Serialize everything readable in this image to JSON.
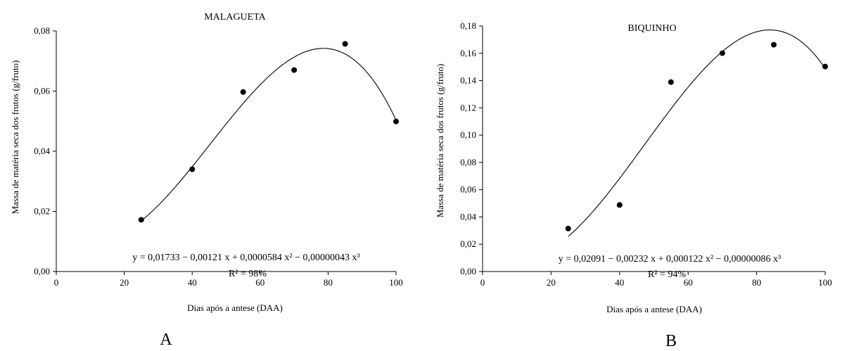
{
  "chart_data": [
    {
      "type": "scatter",
      "title": "MALAGUETA",
      "panel_label": "A",
      "xlabel": "Dias após a antese (DAA)",
      "ylabel": "Massa de matéria seca dos frutos (g/fruto)",
      "xlim": [
        0,
        100
      ],
      "ylim": [
        0,
        0.08
      ],
      "x_ticks": [
        "0",
        "20",
        "40",
        "60",
        "80",
        "100"
      ],
      "y_ticks": [
        "0,00",
        "0,02",
        "0,04",
        "0,06",
        "0,08"
      ],
      "x": [
        25,
        40,
        55,
        70,
        85,
        100
      ],
      "y": [
        0.0172,
        0.034,
        0.0597,
        0.067,
        0.0757,
        0.0499
      ],
      "fit": {
        "type": "cubic",
        "coefficients": [
          0.01733,
          -0.00121,
          5.84e-05,
          -4.3e-07
        ],
        "x_range": [
          25,
          100
        ]
      },
      "equation": "y = 0,01733 − 0,00121 x + 0,0000584 x² − 0,00000043 x³",
      "r2": "R² = 98%",
      "grid": false,
      "legend": "none"
    },
    {
      "type": "scatter",
      "title": "BIQUINHO",
      "panel_label": "B",
      "xlabel": "Dias após a antese (DAA)",
      "ylabel": "Massa de matéria seca dos frutos (g/fruto)",
      "xlim": [
        0,
        100
      ],
      "ylim": [
        0,
        0.18
      ],
      "x_ticks": [
        "0",
        "20",
        "40",
        "60",
        "80",
        "100"
      ],
      "y_ticks": [
        "0,00",
        "0,02",
        "0,04",
        "0,06",
        "0,08",
        "0,10",
        "0,12",
        "0,14",
        "0,16",
        "0,18"
      ],
      "x": [
        25,
        40,
        55,
        70,
        85,
        100
      ],
      "y": [
        0.0315,
        0.0488,
        0.1389,
        0.1601,
        0.1663,
        0.1503
      ],
      "fit": {
        "type": "cubic",
        "coefficients": [
          0.02091,
          -0.00232,
          0.000122,
          -8.6e-07
        ],
        "x_range": [
          25,
          100
        ]
      },
      "equation": "y = 0,02091 − 0,00232 x + 0,000122 x² − 0,00000086 x³",
      "r2": "R² = 94%",
      "grid": false,
      "legend": "none"
    }
  ]
}
